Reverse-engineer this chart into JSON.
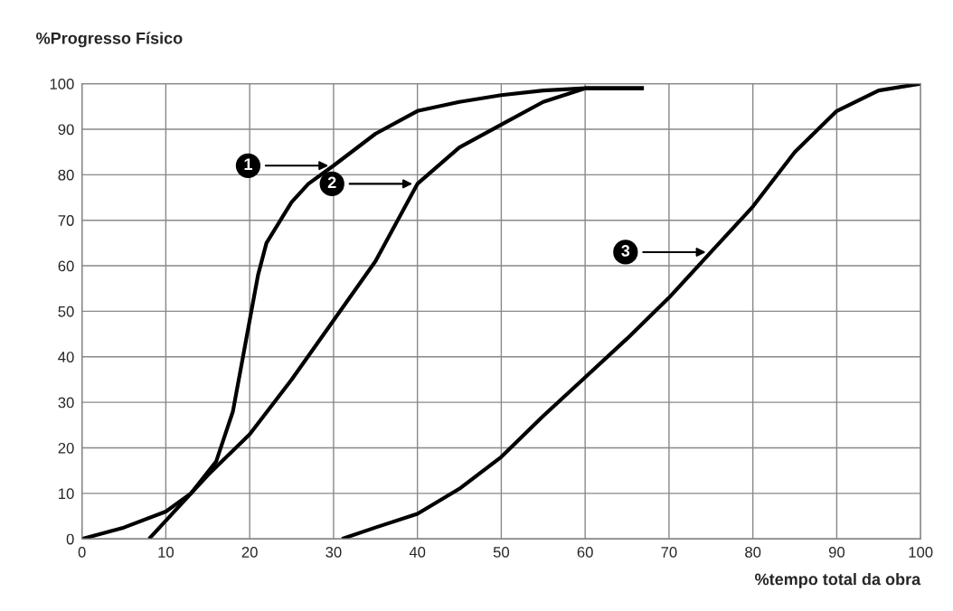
{
  "chart_data": {
    "type": "line",
    "xlabel": "%tempo total da obra",
    "ylabel": "%Progresso Físico",
    "xlim": [
      0,
      100
    ],
    "ylim": [
      0,
      100
    ],
    "xticks": [
      0,
      10,
      20,
      30,
      40,
      50,
      60,
      70,
      80,
      90,
      100
    ],
    "yticks": [
      0,
      10,
      20,
      30,
      40,
      50,
      60,
      70,
      80,
      90,
      100
    ],
    "grid": true,
    "legend": "top",
    "marker": "none",
    "line_style": "solid",
    "series": [
      {
        "name": "1",
        "color": "#000000",
        "x": [
          0,
          5,
          10,
          13,
          16,
          18,
          19,
          20,
          21,
          22,
          24,
          25,
          27,
          30,
          35,
          40,
          45,
          50,
          55,
          60,
          67
        ],
        "values": [
          0,
          2.5,
          6,
          10,
          17,
          28,
          38,
          48,
          58,
          65,
          71,
          74,
          78,
          82,
          89,
          94,
          96,
          97.5,
          98.5,
          99,
          99
        ]
      },
      {
        "name": "2",
        "color": "#000000",
        "x": [
          8,
          10,
          15,
          20,
          25,
          30,
          35,
          40,
          45,
          50,
          55,
          60,
          67
        ],
        "values": [
          0,
          4,
          14,
          23,
          35,
          48,
          61,
          78,
          86,
          91,
          96,
          99,
          99
        ]
      },
      {
        "name": "3",
        "color": "#000000",
        "x": [
          31,
          35,
          40,
          45,
          50,
          55,
          60,
          65,
          70,
          75,
          80,
          85,
          90,
          95,
          100
        ],
        "values": [
          0,
          2.5,
          5.5,
          11,
          18,
          27,
          35.5,
          44,
          53,
          63,
          73,
          85,
          94,
          98.5,
          100
        ]
      }
    ]
  }
}
